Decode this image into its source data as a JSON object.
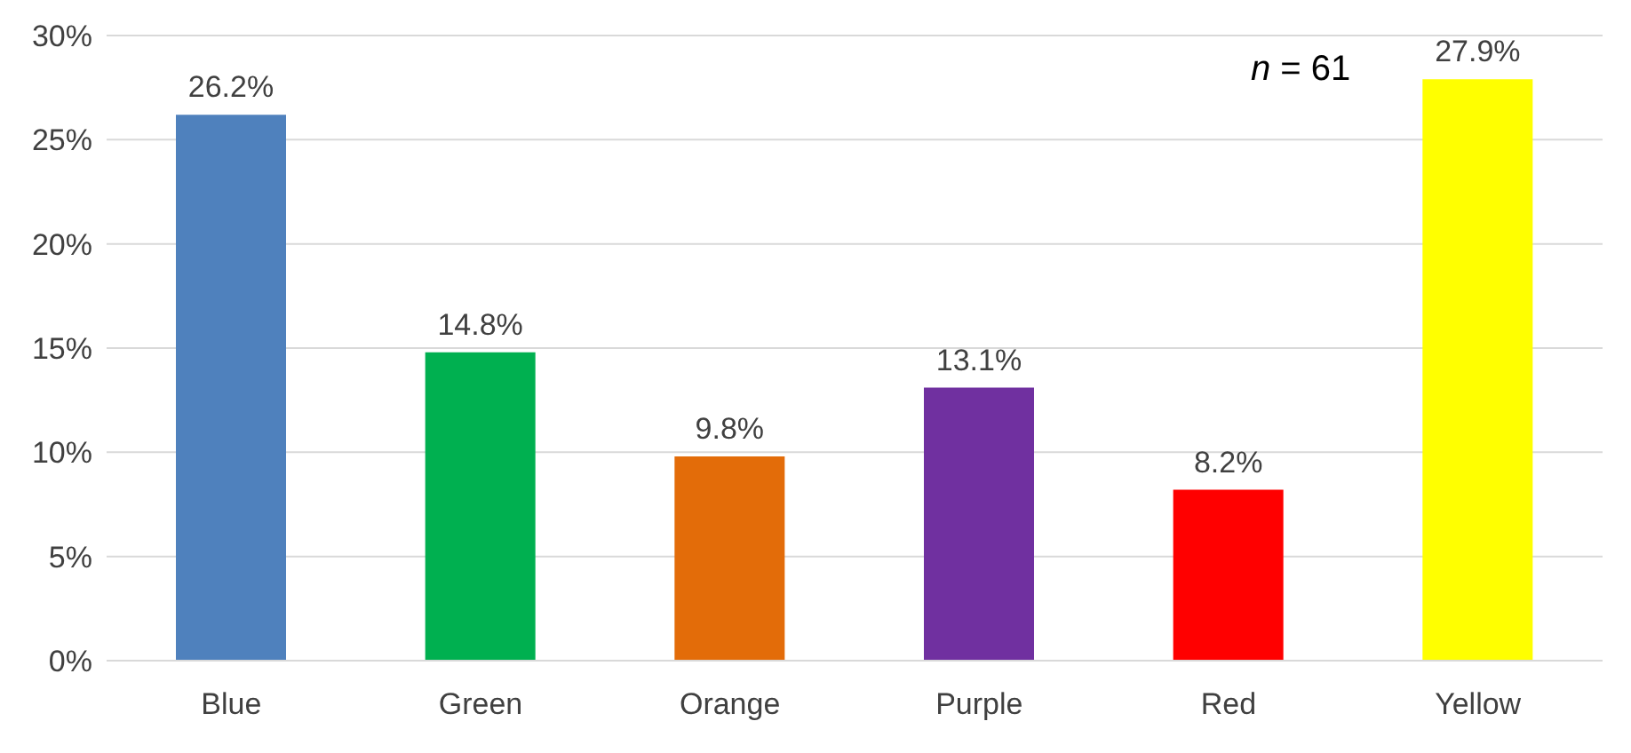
{
  "chart_data": {
    "type": "bar",
    "categories": [
      "Blue",
      "Green",
      "Orange",
      "Purple",
      "Red",
      "Yellow"
    ],
    "values": [
      26.2,
      14.8,
      9.8,
      13.1,
      8.2,
      27.9
    ],
    "colors": [
      "#4f81bd",
      "#00b050",
      "#e36c09",
      "#7030a0",
      "#ff0000",
      "#ffff00"
    ],
    "value_labels": [
      "26.2%",
      "14.8%",
      "9.8%",
      "13.1%",
      "8.2%",
      "27.9%"
    ],
    "ylim": [
      0,
      30
    ],
    "yticks": [
      {
        "value": 0,
        "label": "0%"
      },
      {
        "value": 5,
        "label": "5%"
      },
      {
        "value": 10,
        "label": "10%"
      },
      {
        "value": 15,
        "label": "15%"
      },
      {
        "value": 20,
        "label": "20%"
      },
      {
        "value": 25,
        "label": "25%"
      },
      {
        "value": 30,
        "label": "30%"
      }
    ],
    "grid": "y",
    "annotations": [
      "n = 61"
    ]
  }
}
